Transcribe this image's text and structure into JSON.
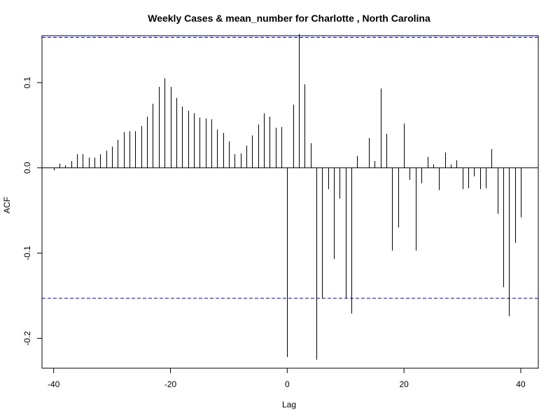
{
  "chart_data": {
    "type": "bar",
    "title": "Weekly Cases & mean_number for Charlotte , North Carolina",
    "xlabel": "Lag",
    "ylabel": "ACF",
    "xlim": [
      -42,
      43
    ],
    "ylim": [
      -0.235,
      0.155
    ],
    "xticks": [
      -40,
      -20,
      0,
      20,
      40
    ],
    "xtick_labels": [
      "-40",
      "-20",
      "0",
      "20",
      "40"
    ],
    "yticks": [
      -0.2,
      -0.1,
      0.0,
      0.1
    ],
    "ytick_labels": [
      "-0.2",
      "-0.1",
      "0.0",
      "0.1"
    ],
    "confidence_bounds": [
      0.153,
      -0.153
    ],
    "grid": false,
    "lags": [
      -40,
      -39,
      -38,
      -37,
      -36,
      -35,
      -34,
      -33,
      -32,
      -31,
      -30,
      -29,
      -28,
      -27,
      -26,
      -25,
      -24,
      -23,
      -22,
      -21,
      -20,
      -19,
      -18,
      -17,
      -16,
      -15,
      -14,
      -13,
      -12,
      -11,
      -10,
      -9,
      -8,
      -7,
      -6,
      -5,
      -4,
      -3,
      -2,
      -1,
      0,
      1,
      2,
      3,
      4,
      5,
      6,
      7,
      8,
      9,
      10,
      11,
      12,
      13,
      14,
      15,
      16,
      17,
      18,
      19,
      20,
      21,
      22,
      23,
      24,
      25,
      26,
      27,
      28,
      29,
      30,
      31,
      32,
      33,
      34,
      35,
      36,
      37,
      38,
      39,
      40
    ],
    "values": [
      -0.003,
      0.005,
      0.003,
      0.008,
      0.016,
      0.016,
      0.012,
      0.012,
      0.016,
      0.02,
      0.025,
      0.033,
      0.042,
      0.043,
      0.043,
      0.049,
      0.06,
      0.075,
      0.095,
      0.105,
      0.095,
      0.082,
      0.072,
      0.067,
      0.064,
      0.059,
      0.058,
      0.057,
      0.045,
      0.041,
      0.031,
      0.016,
      0.017,
      0.026,
      0.038,
      0.051,
      0.064,
      0.06,
      0.047,
      0.048,
      -0.222,
      0.074,
      0.157,
      0.098,
      0.029,
      -0.225,
      -0.153,
      -0.025,
      -0.107,
      -0.036,
      -0.153,
      -0.171,
      0.014,
      0.0,
      0.035,
      0.008,
      0.093,
      0.04,
      -0.097,
      -0.07,
      0.052,
      -0.014,
      -0.097,
      -0.018,
      0.013,
      0.004,
      -0.026,
      0.018,
      0.004,
      0.009,
      -0.025,
      -0.024,
      -0.01,
      -0.025,
      -0.024,
      0.022,
      -0.054,
      -0.14,
      -0.174,
      -0.088,
      -0.058
    ]
  }
}
